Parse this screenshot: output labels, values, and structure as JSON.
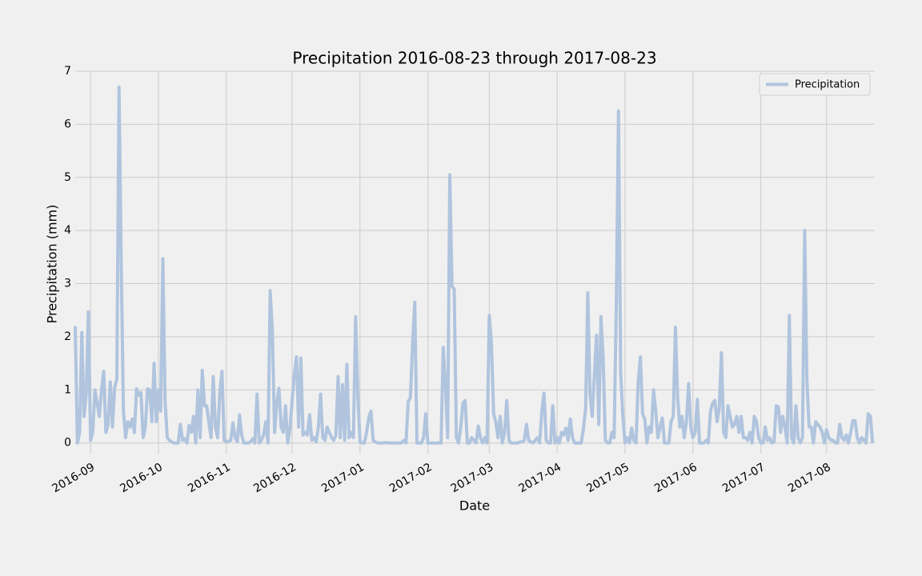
{
  "chart_data": {
    "type": "line",
    "title": "Precipitation 2016-08-23 through 2017-08-23",
    "xlabel": "Date",
    "ylabel": "Precipitation (mm)",
    "xlim": [
      0,
      365
    ],
    "ylim": [
      -0.2,
      7.0
    ],
    "yticks": [
      0,
      1,
      2,
      3,
      4,
      5,
      6,
      7
    ],
    "xticks": [
      {
        "value": 7,
        "label": "2016-09"
      },
      {
        "value": 38,
        "label": "2016-10"
      },
      {
        "value": 69,
        "label": "2016-11"
      },
      {
        "value": 99,
        "label": "2016-12"
      },
      {
        "value": 130,
        "label": "2017-01"
      },
      {
        "value": 161,
        "label": "2017-02"
      },
      {
        "value": 189,
        "label": "2017-03"
      },
      {
        "value": 220,
        "label": "2017-04"
      },
      {
        "value": 251,
        "label": "2017-05"
      },
      {
        "value": 282,
        "label": "2017-06"
      },
      {
        "value": 313,
        "label": "2017-07"
      },
      {
        "value": 343,
        "label": "2017-08"
      }
    ],
    "grid": true,
    "legend": "upper right",
    "x": [
      0,
      1,
      2,
      3,
      4,
      5,
      6,
      7,
      8,
      9,
      10,
      11,
      12,
      13,
      14,
      15,
      16,
      17,
      18,
      19,
      20,
      21,
      22,
      23,
      24,
      25,
      26,
      27,
      28,
      29,
      30,
      31,
      32,
      33,
      34,
      35,
      36,
      37,
      38,
      39,
      40,
      41,
      42,
      43,
      44,
      45,
      46,
      47,
      48,
      49,
      50,
      51,
      52,
      53,
      54,
      55,
      56,
      57,
      58,
      59,
      60,
      61,
      62,
      63,
      64,
      65,
      66,
      67,
      68,
      69,
      70,
      71,
      72,
      73,
      74,
      75,
      76,
      77,
      78,
      79,
      80,
      81,
      82,
      83,
      84,
      85,
      86,
      87,
      88,
      89,
      90,
      91,
      92,
      93,
      94,
      95,
      96,
      97,
      98,
      99,
      100,
      101,
      102,
      103,
      104,
      105,
      106,
      107,
      108,
      109,
      110,
      111,
      112,
      113,
      114,
      115,
      116,
      117,
      118,
      119,
      120,
      121,
      122,
      123,
      124,
      125,
      126,
      127,
      128,
      129,
      130,
      131,
      132,
      133,
      134,
      135,
      136,
      137,
      138,
      139,
      140,
      141,
      142,
      143,
      144,
      145,
      146,
      147,
      148,
      149,
      150,
      151,
      152,
      153,
      154,
      155,
      156,
      157,
      158,
      159,
      160,
      161,
      162,
      163,
      164,
      165,
      166,
      167,
      168,
      169,
      170,
      171,
      172,
      173,
      174,
      175,
      176,
      177,
      178,
      179,
      180,
      181,
      182,
      183,
      184,
      185,
      186,
      187,
      188,
      189,
      190,
      191,
      192,
      193,
      194,
      195,
      196,
      197,
      198,
      199,
      200,
      201,
      202,
      203,
      204,
      205,
      206,
      207,
      208,
      209,
      210,
      211,
      212,
      213,
      214,
      215,
      216,
      217,
      218,
      219,
      220,
      221,
      222,
      223,
      224,
      225,
      226,
      227,
      228,
      229,
      230,
      231,
      232,
      233,
      234,
      235,
      236,
      237,
      238,
      239,
      240,
      241,
      242,
      243,
      244,
      245,
      246,
      247,
      248,
      249,
      250,
      251,
      252,
      253,
      254,
      255,
      256,
      257,
      258,
      259,
      260,
      261,
      262,
      263,
      264,
      265,
      266,
      267,
      268,
      269,
      270,
      271,
      272,
      273,
      274,
      275,
      276,
      277,
      278,
      279,
      280,
      281,
      282,
      283,
      284,
      285,
      286,
      287,
      288,
      289,
      290,
      291,
      292,
      293,
      294,
      295,
      296,
      297,
      298,
      299,
      300,
      301,
      302,
      303,
      304,
      305,
      306,
      307,
      308,
      309,
      310,
      311,
      312,
      313,
      314,
      315,
      316,
      317,
      318,
      319,
      320,
      321,
      322,
      323,
      324,
      325,
      326,
      327,
      328,
      329,
      330,
      331,
      332,
      333,
      334,
      335,
      336,
      337,
      338,
      339,
      340,
      341,
      342,
      343,
      344,
      345,
      346,
      347,
      348,
      349,
      350,
      351,
      352,
      353,
      354,
      355,
      356,
      357,
      358,
      359,
      360,
      361,
      362,
      363,
      364
    ],
    "series": [
      {
        "name": "Precipitation",
        "color": "#b0c4de",
        "values": [
          2.2,
          0.0,
          0.2,
          2.08,
          0.5,
          0.9,
          2.47,
          0.05,
          0.2,
          1.0,
          0.75,
          0.5,
          1.0,
          1.35,
          0.2,
          0.35,
          1.15,
          0.3,
          1.05,
          1.2,
          6.7,
          3.35,
          0.6,
          0.1,
          0.4,
          0.3,
          0.45,
          0.2,
          1.02,
          0.9,
          0.95,
          0.1,
          0.3,
          1.02,
          1.0,
          0.4,
          1.5,
          0.4,
          1.0,
          0.6,
          3.47,
          0.8,
          0.1,
          0.05,
          0.02,
          0.0,
          0.0,
          0.0,
          0.35,
          0.05,
          0.08,
          0.0,
          0.33,
          0.2,
          0.5,
          0.0,
          1.0,
          0.1,
          1.37,
          0.7,
          0.7,
          0.4,
          0.1,
          1.25,
          0.3,
          0.1,
          0.95,
          1.35,
          0.05,
          0.02,
          0.03,
          0.05,
          0.38,
          0.1,
          0.02,
          0.53,
          0.15,
          0.0,
          0.0,
          0.0,
          0.02,
          0.08,
          0.0,
          0.92,
          0.0,
          0.05,
          0.15,
          0.4,
          0.0,
          2.87,
          2.1,
          0.2,
          0.74,
          1.03,
          0.3,
          0.2,
          0.7,
          0.0,
          0.25,
          0.8,
          1.28,
          1.62,
          0.3,
          1.6,
          0.15,
          0.2,
          0.15,
          0.53,
          0.05,
          0.1,
          0.02,
          0.3,
          0.92,
          0.1,
          0.05,
          0.3,
          0.2,
          0.1,
          0.05,
          0.15,
          1.25,
          0.1,
          1.1,
          0.05,
          1.48,
          0.1,
          0.2,
          0.1,
          2.38,
          0.9,
          0.02,
          0.0,
          0.0,
          0.2,
          0.48,
          0.6,
          0.05,
          0.02,
          0.0,
          0.0,
          0.0,
          0.0,
          0.01,
          0.0,
          0.0,
          0.0,
          0.0,
          0.0,
          0.0,
          0.0,
          0.05,
          0.0,
          0.78,
          0.85,
          1.85,
          2.65,
          0.0,
          0.0,
          0.0,
          0.1,
          0.55,
          0.0,
          0.0,
          0.0,
          0.0,
          0.0,
          0.0,
          0.0,
          1.8,
          1.1,
          0.1,
          5.05,
          2.95,
          2.9,
          0.1,
          0.0,
          0.3,
          0.75,
          0.8,
          0.0,
          0.0,
          0.1,
          0.05,
          0.0,
          0.32,
          0.1,
          0.0,
          0.1,
          0.0,
          2.4,
          1.88,
          0.55,
          0.4,
          0.1,
          0.5,
          0.0,
          0.2,
          0.8,
          0.05,
          0.0,
          0.0,
          0.0,
          0.0,
          0.02,
          0.02,
          0.05,
          0.35,
          0.05,
          0.02,
          0.0,
          0.05,
          0.1,
          0.0,
          0.6,
          0.94,
          0.05,
          0.0,
          0.0,
          0.7,
          0.0,
          0.1,
          0.0,
          0.2,
          0.15,
          0.28,
          0.05,
          0.45,
          0.1,
          0.0,
          0.0,
          0.0,
          0.0,
          0.27,
          0.65,
          2.83,
          0.9,
          0.5,
          1.3,
          2.03,
          0.35,
          2.38,
          1.6,
          0.05,
          0.0,
          0.0,
          0.2,
          0.1,
          2.6,
          6.25,
          1.32,
          0.5,
          0.0,
          0.1,
          0.0,
          0.28,
          0.05,
          0.0,
          1.15,
          1.62,
          0.55,
          0.45,
          0.0,
          0.3,
          0.2,
          1.0,
          0.6,
          0.1,
          0.3,
          0.47,
          0.0,
          0.0,
          0.0,
          0.4,
          0.5,
          2.18,
          0.85,
          0.3,
          0.5,
          0.1,
          0.4,
          1.12,
          0.3,
          0.1,
          0.2,
          0.82,
          0.0,
          0.0,
          0.0,
          0.05,
          0.0,
          0.6,
          0.75,
          0.8,
          0.4,
          0.65,
          1.7,
          0.2,
          0.1,
          0.7,
          0.5,
          0.3,
          0.35,
          0.5,
          0.2,
          0.5,
          0.1,
          0.1,
          0.05,
          0.2,
          0.0,
          0.5,
          0.4,
          0.1,
          0.0,
          0.0,
          0.3,
          0.05,
          0.1,
          0.0,
          0.02,
          0.7,
          0.68,
          0.2,
          0.5,
          0.3,
          0.0,
          2.4,
          0.1,
          0.0,
          0.7,
          0.1,
          0.0,
          0.1,
          4.0,
          1.2,
          0.3,
          0.3,
          0.0,
          0.4,
          0.35,
          0.3,
          0.2,
          0.0,
          0.25,
          0.1,
          0.05,
          0.05,
          0.0,
          0.0,
          0.35,
          0.1,
          0.05,
          0.15,
          0.0,
          0.2,
          0.42,
          0.42,
          0.1,
          0.0,
          0.1,
          0.05,
          0.0,
          0.55,
          0.5,
          0.0
        ]
      }
    ]
  }
}
